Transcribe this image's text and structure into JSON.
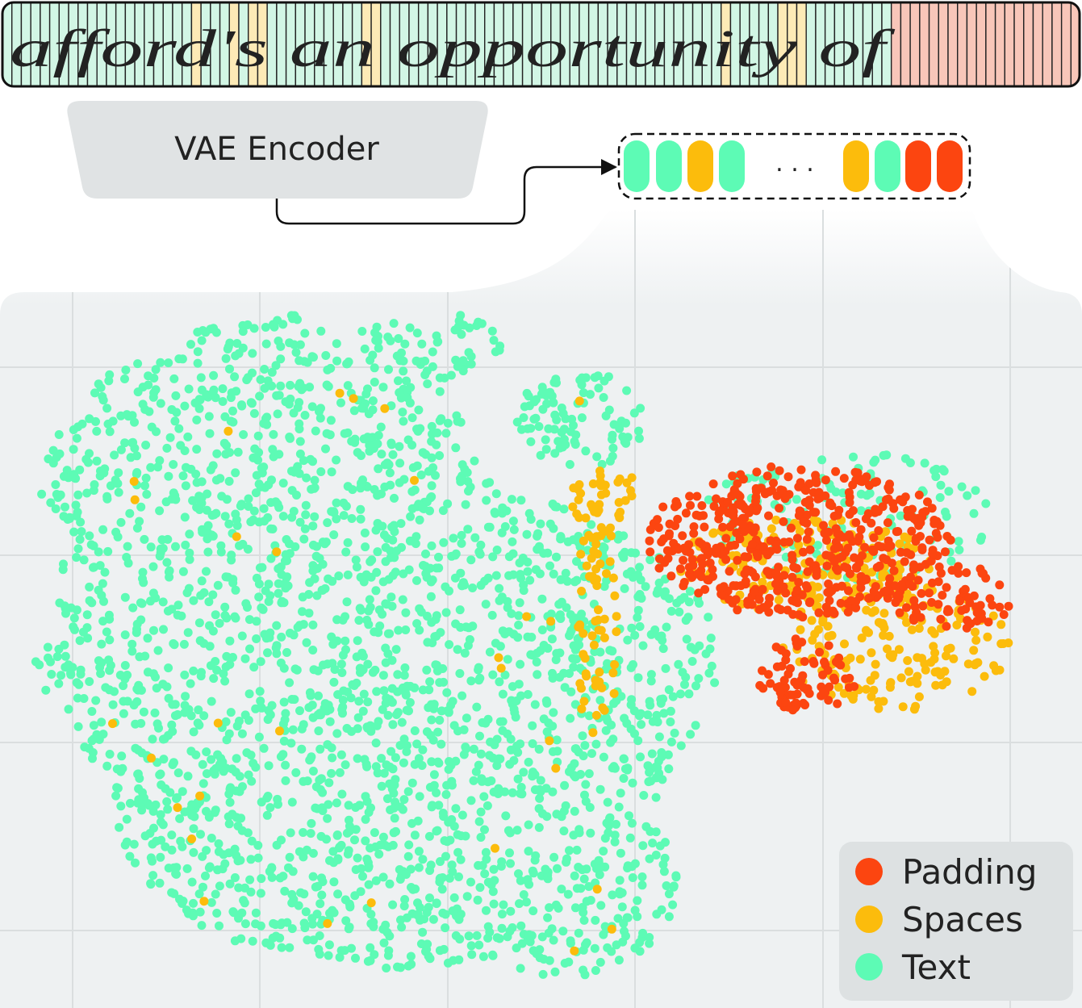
{
  "handwriting": "afford's an opportunity of",
  "encoder": {
    "label": "VAE Encoder"
  },
  "tokens": {
    "ellipsis": ". . ."
  },
  "legend": [
    {
      "name": "Padding",
      "color": "#fc4510"
    },
    {
      "name": "Spaces",
      "color": "#fcbc0c"
    },
    {
      "name": "Text",
      "color": "#5dfbb5"
    }
  ]
}
